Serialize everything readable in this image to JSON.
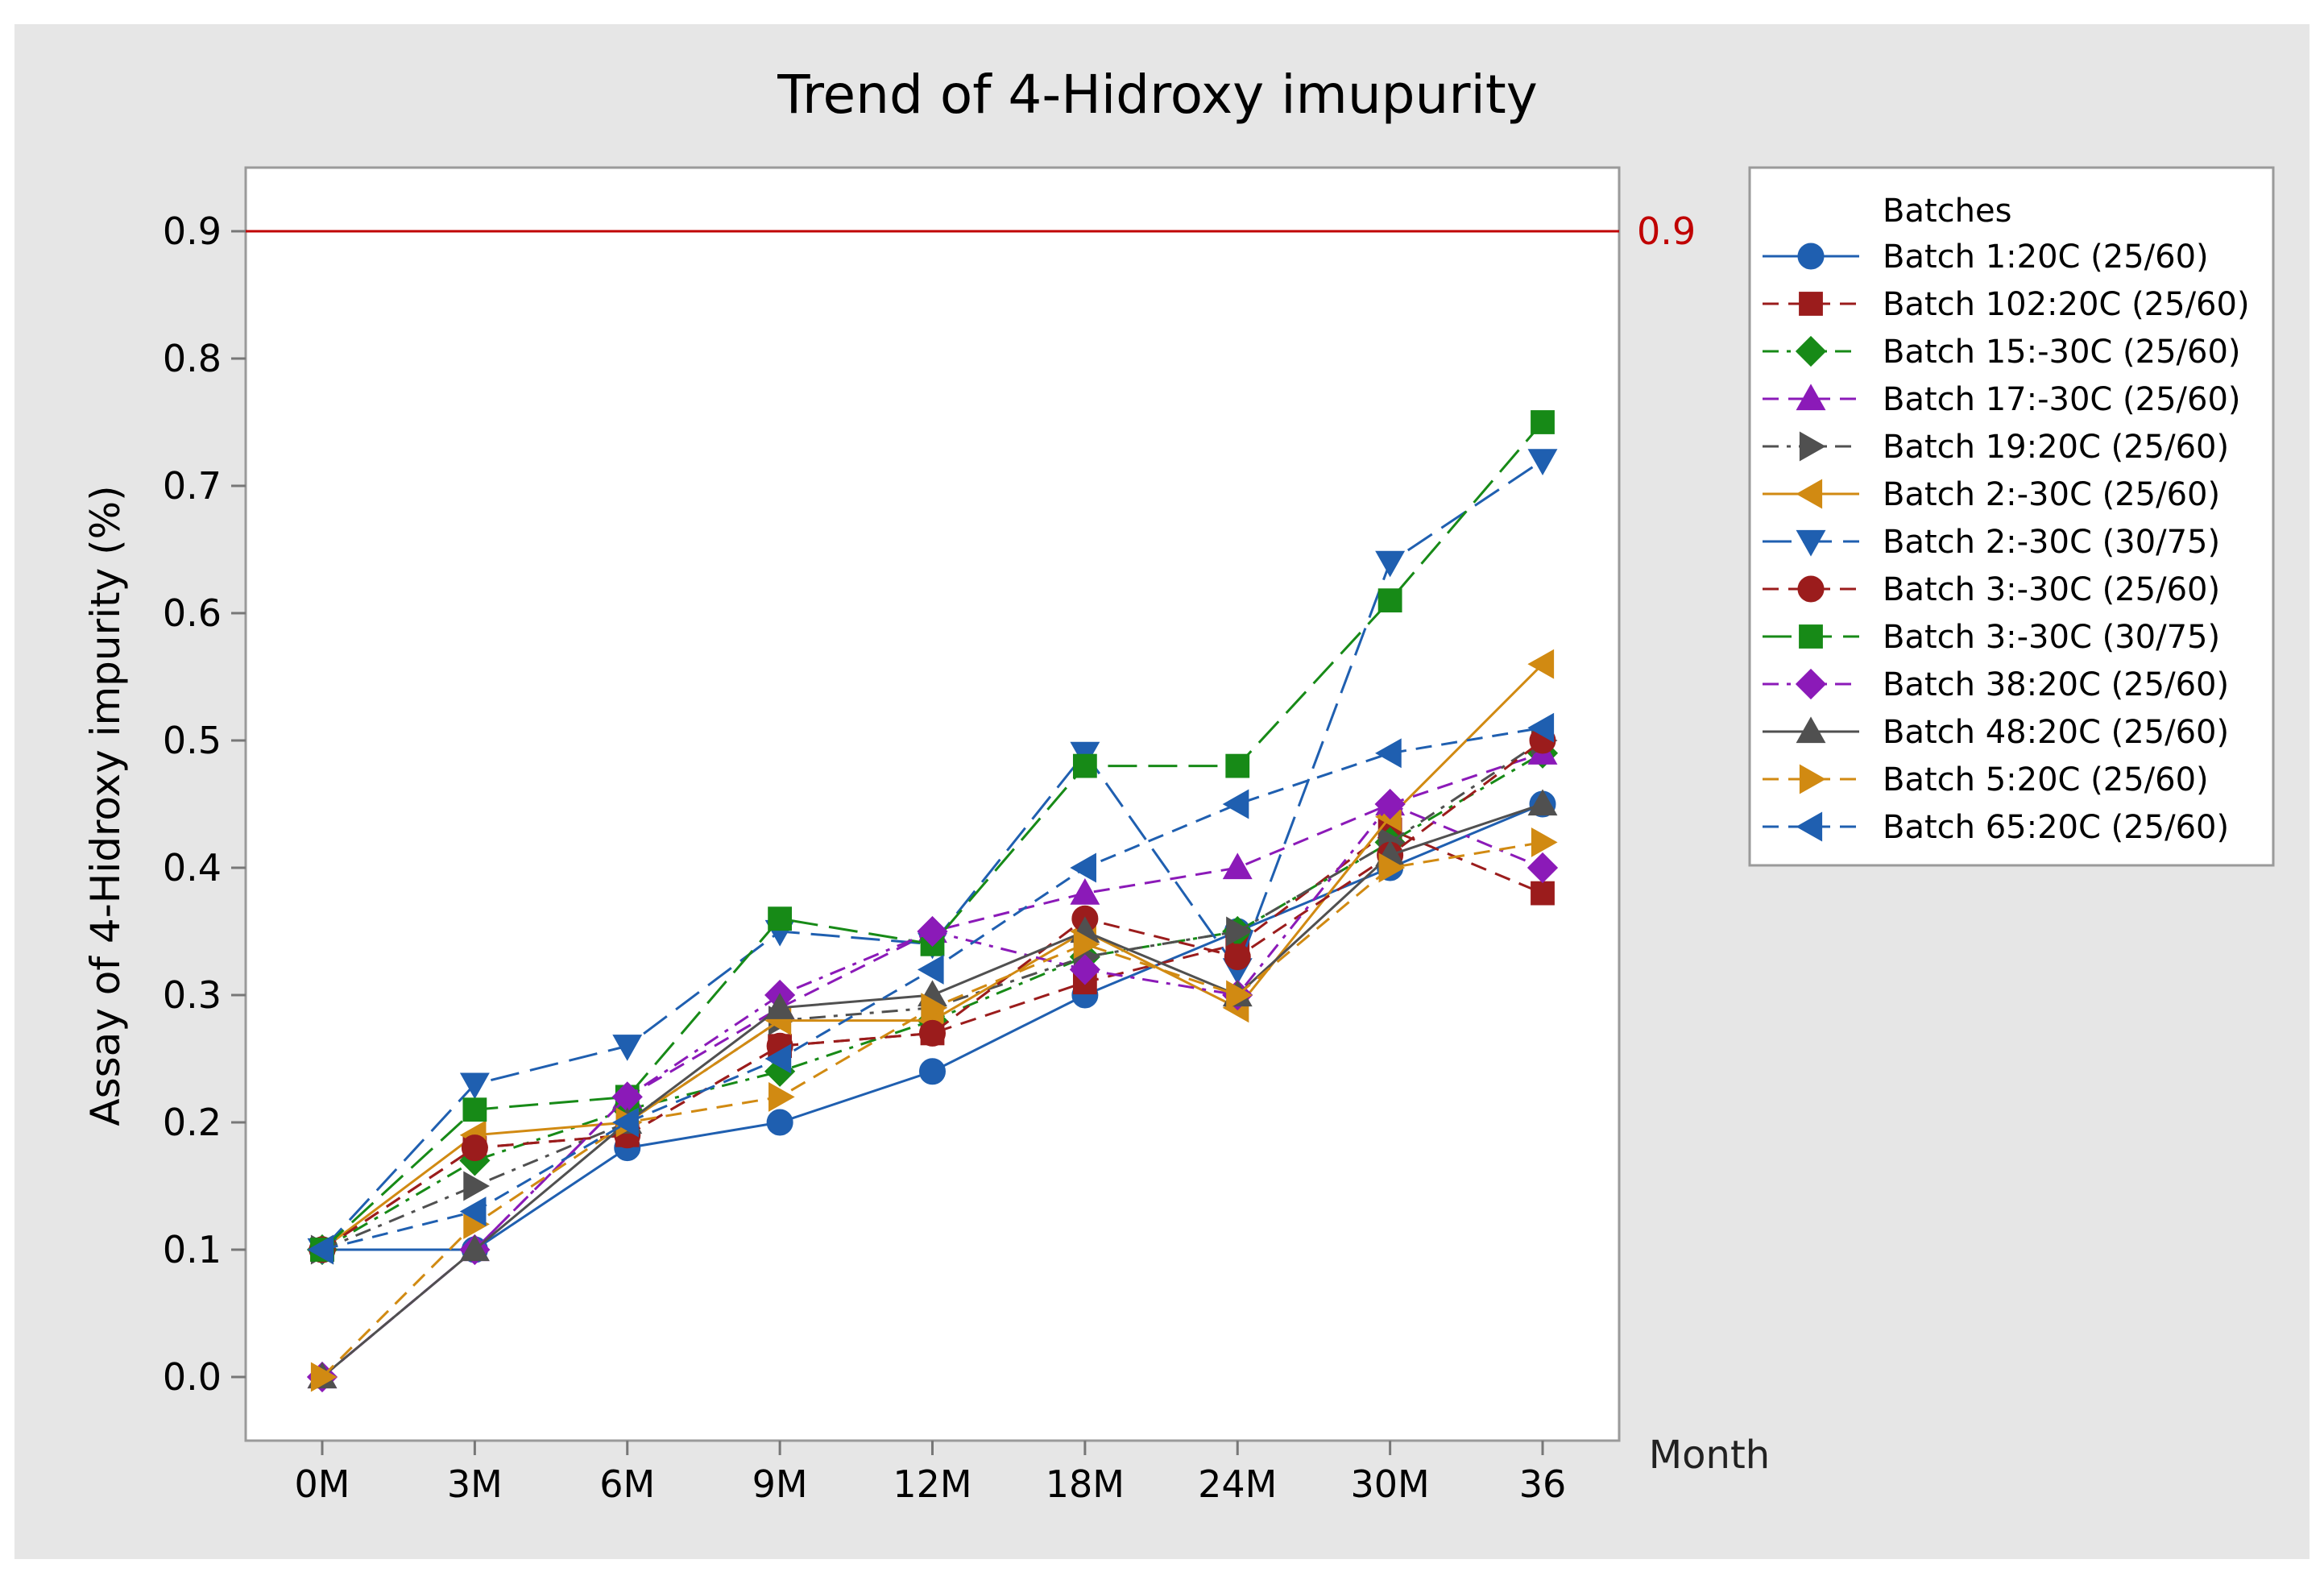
{
  "chart_data": {
    "type": "line",
    "title": "Trend of 4-Hidroxy imupurity",
    "xlabel": "Month",
    "ylabel": "Assay of 4-Hidroxy impurity (%)",
    "categories": [
      "0M",
      "3M",
      "6M",
      "9M",
      "12M",
      "18M",
      "24M",
      "30M",
      "36"
    ],
    "ylim": [
      -0.05,
      0.95
    ],
    "yticks": [
      "0.0",
      "0.1",
      "0.2",
      "0.3",
      "0.4",
      "0.5",
      "0.6",
      "0.7",
      "0.8",
      "0.9"
    ],
    "reference_line": {
      "value": 0.9,
      "label": "0.9",
      "color": "#c00000"
    },
    "legend_title": "Batches",
    "legend_placement": "right",
    "grid": false,
    "colors": {
      "background": "#e6e6e6",
      "plot_background": "#ffffff"
    },
    "series": [
      {
        "name": "Batch 1:20C (25/60)",
        "color": "#1f5fb0",
        "marker": "circle",
        "dash": "solid",
        "values": [
          0.1,
          0.1,
          0.18,
          0.2,
          0.24,
          0.3,
          0.35,
          0.4,
          0.45
        ]
      },
      {
        "name": "Batch 102:20C (25/60)",
        "color": "#9b1c1c",
        "marker": "square",
        "dash": "dash",
        "values": [
          0.1,
          0.18,
          0.19,
          0.26,
          0.27,
          0.31,
          0.34,
          0.43,
          0.38
        ]
      },
      {
        "name": "Batch 15:-30C (25/60)",
        "color": "#178a17",
        "marker": "diamond",
        "dash": "dashdot",
        "values": [
          0.1,
          0.17,
          0.21,
          0.24,
          0.28,
          0.33,
          0.35,
          0.42,
          0.49
        ]
      },
      {
        "name": "Batch 17:-30C (25/60)",
        "color": "#8b1ab8",
        "marker": "triangle-up",
        "dash": "dash",
        "values": [
          0.0,
          0.1,
          0.22,
          0.29,
          0.35,
          0.38,
          0.4,
          0.45,
          0.49
        ]
      },
      {
        "name": "Batch 19:20C (25/60)",
        "color": "#505050",
        "marker": "triangle-right",
        "dash": "dashdot",
        "values": [
          0.1,
          0.15,
          0.2,
          0.28,
          0.29,
          0.33,
          0.35,
          0.42,
          0.5
        ]
      },
      {
        "name": "Batch 2:-30C (25/60)",
        "color": "#d18a12",
        "marker": "triangle-left",
        "dash": "solid",
        "values": [
          0.1,
          0.19,
          0.2,
          0.28,
          0.28,
          0.35,
          0.29,
          0.44,
          0.56
        ]
      },
      {
        "name": "Batch 2:-30C (30/75)",
        "color": "#1f5fb0",
        "marker": "triangle-down",
        "dash": "longdash",
        "values": [
          0.1,
          0.23,
          0.26,
          0.35,
          0.34,
          0.49,
          0.32,
          0.64,
          0.72
        ]
      },
      {
        "name": "Batch 3:-30C (25/60)",
        "color": "#9b1c1c",
        "marker": "circle",
        "dash": "dash",
        "values": [
          0.1,
          0.18,
          0.19,
          0.26,
          0.27,
          0.36,
          0.33,
          0.41,
          0.5
        ]
      },
      {
        "name": "Batch 3:-30C (30/75)",
        "color": "#178a17",
        "marker": "square",
        "dash": "longdash",
        "values": [
          0.1,
          0.21,
          0.22,
          0.36,
          0.34,
          0.48,
          0.48,
          0.61,
          0.75
        ]
      },
      {
        "name": "Batch 38:20C (25/60)",
        "color": "#8b1ab8",
        "marker": "diamond",
        "dash": "dashdot",
        "values": [
          0.0,
          0.1,
          0.22,
          0.3,
          0.35,
          0.32,
          0.3,
          0.45,
          0.4
        ]
      },
      {
        "name": "Batch 48:20C (25/60)",
        "color": "#505050",
        "marker": "triangle-up",
        "dash": "solid",
        "values": [
          0.0,
          0.1,
          0.2,
          0.29,
          0.3,
          0.35,
          0.3,
          0.41,
          0.45
        ]
      },
      {
        "name": "Batch 5:20C (25/60)",
        "color": "#d18a12",
        "marker": "triangle-right",
        "dash": "dash",
        "values": [
          0.0,
          0.12,
          0.2,
          0.22,
          0.29,
          0.34,
          0.3,
          0.4,
          0.42
        ]
      },
      {
        "name": "Batch 65:20C (25/60)",
        "color": "#1f5fb0",
        "marker": "triangle-left",
        "dash": "dash",
        "values": [
          0.1,
          0.13,
          0.2,
          0.25,
          0.32,
          0.4,
          0.45,
          0.49,
          0.51
        ]
      }
    ]
  }
}
